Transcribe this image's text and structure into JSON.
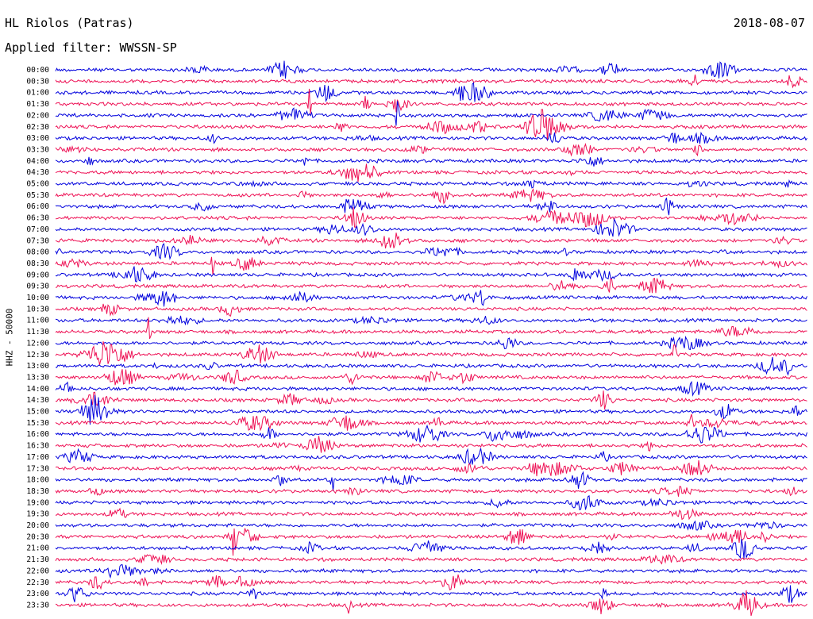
{
  "header": {
    "station": "HL Riolos (Patras)",
    "filter_label": "Applied filter: WWSSN-SP",
    "date": "2018-08-07"
  },
  "chart_data": {
    "type": "line",
    "title": "HL Riolos (Patras)",
    "xlabel": "",
    "ylabel": "HHZ - 50000",
    "row_labels": [
      "00:00",
      "00:30",
      "01:00",
      "01:30",
      "02:00",
      "02:30",
      "03:00",
      "03:30",
      "04:00",
      "04:30",
      "05:00",
      "05:30",
      "06:00",
      "06:30",
      "07:00",
      "07:30",
      "08:00",
      "08:30",
      "09:00",
      "09:30",
      "10:00",
      "10:30",
      "11:00",
      "11:30",
      "12:00",
      "12:30",
      "13:00",
      "13:30",
      "14:00",
      "14:30",
      "15:00",
      "15:30",
      "16:00",
      "16:30",
      "17:00",
      "17:30",
      "18:00",
      "18:30",
      "19:00",
      "19:30",
      "20:00",
      "20:30",
      "21:00",
      "21:30",
      "22:00",
      "22:30",
      "23:00",
      "23:30"
    ],
    "series_colors": [
      "#0000dd",
      "#ee1155"
    ],
    "grid": false,
    "legend": "none"
  }
}
